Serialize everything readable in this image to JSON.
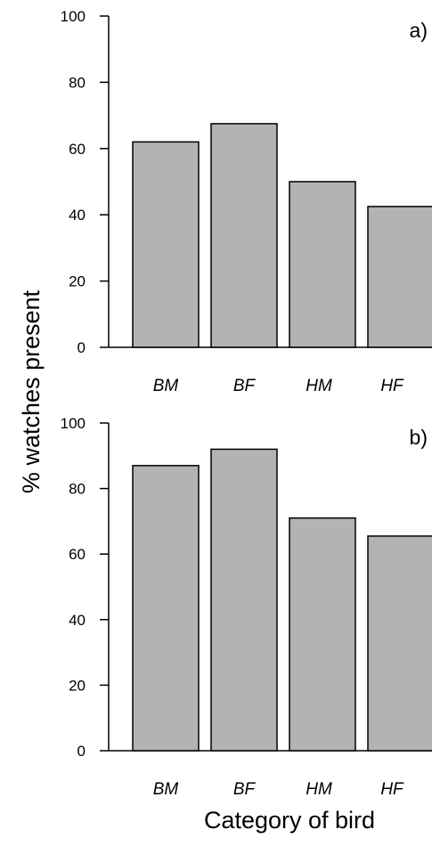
{
  "ylabel": "% watches present",
  "xlabel": "Category of bird",
  "chart_data": [
    {
      "type": "bar",
      "panel_label": "a)",
      "categories": [
        "BM",
        "BF",
        "HM",
        "HF"
      ],
      "values": [
        62,
        67.5,
        50,
        42.5
      ],
      "ylim": [
        0,
        100
      ],
      "yticks": [
        0,
        20,
        40,
        60,
        80,
        100
      ],
      "bar_color": "#b3b3b3",
      "grid": false
    },
    {
      "type": "bar",
      "panel_label": "b)",
      "categories": [
        "BM",
        "BF",
        "HM",
        "HF"
      ],
      "values": [
        87,
        92,
        71,
        65.5
      ],
      "ylim": [
        0,
        100
      ],
      "yticks": [
        0,
        20,
        40,
        60,
        80,
        100
      ],
      "bar_color": "#b3b3b3",
      "grid": false
    }
  ]
}
